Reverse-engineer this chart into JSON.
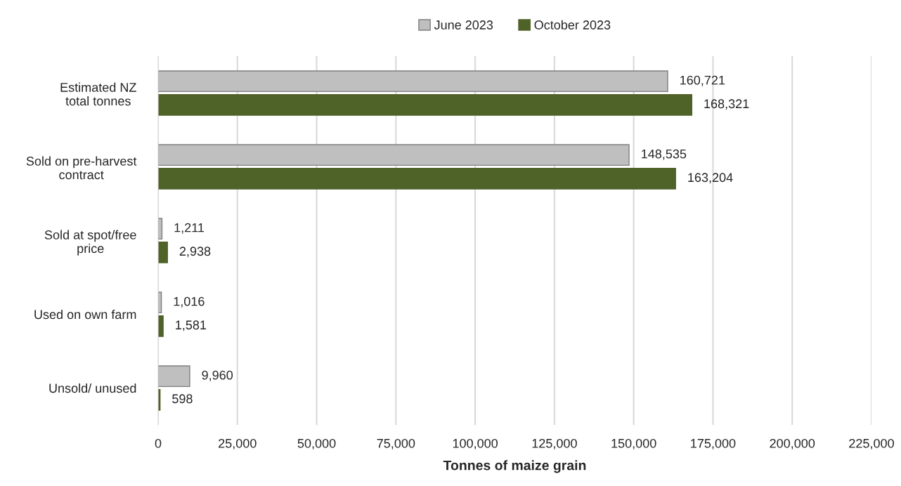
{
  "chart_data": {
    "type": "bar",
    "orientation": "horizontal",
    "xlabel": "Tonnes of maize grain",
    "categories": [
      "Estimated NZ\ntotal tonnes",
      "Sold on pre-harvest\ncontract",
      "Sold at spot/free\nprice",
      "Used on own farm",
      "Unsold/ unused"
    ],
    "series": [
      {
        "name": "June 2023",
        "color": "#bfbfbf",
        "values": [
          160721,
          148535,
          1211,
          1016,
          9960
        ],
        "value_labels": [
          "160,721",
          "148,535",
          "1,211",
          "1,016",
          "9,960"
        ]
      },
      {
        "name": "October 2023",
        "color": "#4f6228",
        "values": [
          168321,
          163204,
          2938,
          1581,
          598
        ],
        "value_labels": [
          "168,321",
          "163,204",
          "2,938",
          "1,581",
          "598"
        ]
      }
    ],
    "xlim": [
      0,
      225000
    ],
    "xticks": [
      0,
      {
        "value": 25000,
        "label": "25,000"
      },
      {
        "value": 50000,
        "label": "50,000"
      },
      {
        "value": 75000,
        "label": "75,000"
      },
      {
        "value": 100000,
        "label": "100,000"
      },
      {
        "value": 125000,
        "label": "125,000"
      },
      {
        "value": 150000,
        "label": "150,000"
      },
      {
        "value": 175000,
        "label": "175,000"
      },
      {
        "value": 200000,
        "label": "200,000"
      },
      {
        "value": 225000,
        "label": "225,000"
      }
    ],
    "grid": "x",
    "legend": "top"
  }
}
